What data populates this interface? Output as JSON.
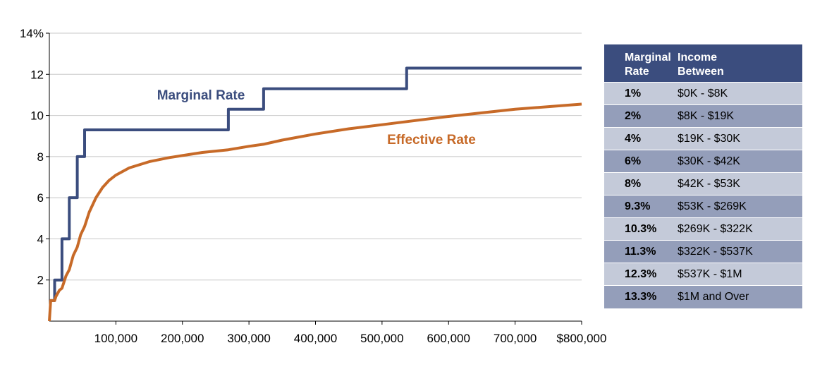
{
  "chart_data": {
    "type": "line",
    "x_ticks": [
      "100,000",
      "200,000",
      "300,000",
      "400,000",
      "500,000",
      "600,000",
      "700,000",
      "$800,000"
    ],
    "y_ticks": [
      "14%",
      "12",
      "10",
      "8",
      "6",
      "4",
      "2"
    ],
    "xlim": [
      0,
      800000
    ],
    "ylim": [
      0,
      14
    ],
    "grid": "horizontal",
    "series": [
      {
        "name": "Marginal Rate",
        "color": "#3b4d7e",
        "step": true,
        "points": [
          [
            0,
            1
          ],
          [
            8000,
            1
          ],
          [
            8000,
            2
          ],
          [
            19000,
            2
          ],
          [
            19000,
            4
          ],
          [
            30000,
            4
          ],
          [
            30000,
            6
          ],
          [
            42000,
            6
          ],
          [
            42000,
            8
          ],
          [
            53000,
            8
          ],
          [
            53000,
            9.3
          ],
          [
            269000,
            9.3
          ],
          [
            269000,
            10.3
          ],
          [
            322000,
            10.3
          ],
          [
            322000,
            11.3
          ],
          [
            537000,
            11.3
          ],
          [
            537000,
            12.3
          ],
          [
            800000,
            12.3
          ]
        ]
      },
      {
        "name": "Effective Rate",
        "color": "#c76a28",
        "step": false,
        "points": [
          [
            0,
            0
          ],
          [
            2000,
            1
          ],
          [
            8000,
            1
          ],
          [
            10000,
            1.2
          ],
          [
            15000,
            1.5
          ],
          [
            19000,
            1.6
          ],
          [
            25000,
            2.2
          ],
          [
            30000,
            2.5
          ],
          [
            36000,
            3.2
          ],
          [
            42000,
            3.6
          ],
          [
            47000,
            4.2
          ],
          [
            53000,
            4.6
          ],
          [
            60000,
            5.3
          ],
          [
            70000,
            6.0
          ],
          [
            80000,
            6.5
          ],
          [
            90000,
            6.85
          ],
          [
            100000,
            7.1
          ],
          [
            120000,
            7.45
          ],
          [
            150000,
            7.75
          ],
          [
            180000,
            7.95
          ],
          [
            200000,
            8.05
          ],
          [
            230000,
            8.2
          ],
          [
            260000,
            8.3
          ],
          [
            269000,
            8.33
          ],
          [
            300000,
            8.5
          ],
          [
            322000,
            8.6
          ],
          [
            350000,
            8.8
          ],
          [
            400000,
            9.1
          ],
          [
            450000,
            9.35
          ],
          [
            500000,
            9.55
          ],
          [
            537000,
            9.7
          ],
          [
            600000,
            9.95
          ],
          [
            700000,
            10.3
          ],
          [
            800000,
            10.55
          ]
        ]
      }
    ]
  },
  "brackets_table": {
    "headers": [
      "Marginal\nRate",
      "Income\nBetween"
    ],
    "rows": [
      {
        "rate": "1%",
        "range": "$0K - $8K"
      },
      {
        "rate": "2%",
        "range": "$8K - $19K"
      },
      {
        "rate": "4%",
        "range": "$19K - $30K"
      },
      {
        "rate": "6%",
        "range": "$30K - $42K"
      },
      {
        "rate": "8%",
        "range": "$42K - $53K"
      },
      {
        "rate": "9.3%",
        "range": "$53K - $269K"
      },
      {
        "rate": "10.3%",
        "range": "$269K - $322K"
      },
      {
        "rate": "11.3%",
        "range": "$322K - $537K"
      },
      {
        "rate": "12.3%",
        "range": "$537K - $1M"
      },
      {
        "rate": "13.3%",
        "range": "$1M and Over"
      }
    ]
  }
}
